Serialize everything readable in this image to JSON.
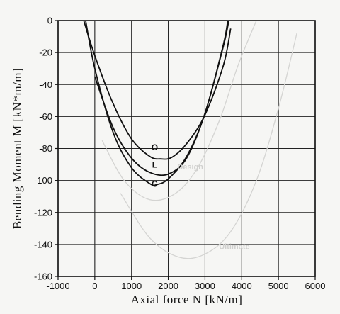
{
  "chart_data": {
    "type": "line",
    "title": "",
    "xlabel": "Axial force N [kN/m]",
    "ylabel": "Bending Moment M [kN*m/m]",
    "xlim": [
      -1000,
      6000
    ],
    "ylim": [
      -160,
      0
    ],
    "xticks": [
      -1000,
      0,
      1000,
      2000,
      3000,
      4000,
      5000,
      6000
    ],
    "yticks": [
      0,
      -20,
      -40,
      -60,
      -80,
      -100,
      -120,
      -140,
      -160
    ],
    "grid": true,
    "legend": "none",
    "series": [
      {
        "name": "O",
        "color": "#111111",
        "x": [
          -300,
          0,
          500,
          1000,
          1500,
          1800,
          2100,
          2500,
          3000,
          3500,
          3700
        ],
        "y": [
          0,
          -22,
          -52,
          -74,
          -85,
          -86.5,
          -85.5,
          -77,
          -59,
          -28,
          -5
        ]
      },
      {
        "name": "L",
        "color": "#111111",
        "x": [
          0,
          500,
          1000,
          1500,
          2000,
          2500,
          3000,
          3500,
          3650
        ],
        "y": [
          -35,
          -67,
          -86,
          -95,
          -96,
          -86,
          -58,
          -16,
          0
        ]
      },
      {
        "name": "C",
        "color": "#111111",
        "x": [
          -250,
          0,
          500,
          1000,
          1500,
          1700,
          2000,
          2500,
          3000,
          3500,
          3620
        ],
        "y": [
          0,
          -30,
          -70,
          -92,
          -102,
          -102.5,
          -99,
          -85,
          -58,
          -15,
          0
        ]
      },
      {
        "name": "Design",
        "color": "#d4d4d2",
        "x": [
          200,
          800,
          1500,
          2200,
          2800,
          3400,
          3900,
          4400
        ],
        "y": [
          -75,
          -100,
          -112,
          -108,
          -92,
          -62,
          -28,
          0
        ]
      },
      {
        "name": "Ultimate",
        "color": "#d4d4d2",
        "x": [
          700,
          1500,
          2300,
          3000,
          3700,
          4400,
          5000,
          5500
        ],
        "y": [
          -108,
          -136,
          -148,
          -146,
          -132,
          -100,
          -55,
          -8
        ]
      }
    ],
    "annotations": [
      {
        "text": "O",
        "x": 1630,
        "y": -81
      },
      {
        "text": "L",
        "x": 1630,
        "y": -92
      },
      {
        "text": "C",
        "x": 1630,
        "y": -104
      },
      {
        "text": "Design",
        "x": 2600,
        "y": -93
      },
      {
        "text": "Ultimate",
        "x": 3800,
        "y": -143
      }
    ]
  }
}
